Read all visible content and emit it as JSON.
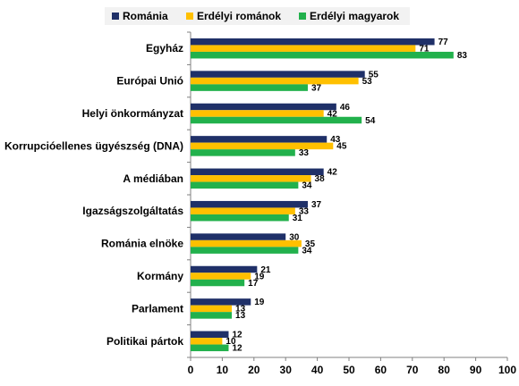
{
  "chart_data": {
    "type": "bar",
    "orientation": "horizontal",
    "categories": [
      "Egyház",
      "Európai Unió",
      "Helyi önkormányzat",
      "Korrupcióellenes ügyészség (DNA)",
      "A médiában",
      "Igazságszolgáltatás",
      "Románia elnöke",
      "Kormány",
      "Parlament",
      "Politikai pártok"
    ],
    "series": [
      {
        "name": "Románia",
        "color": "#1f3068",
        "values": [
          77,
          55,
          46,
          43,
          42,
          37,
          30,
          21,
          19,
          12
        ]
      },
      {
        "name": "Erdélyi románok",
        "color": "#ffc000",
        "values": [
          71,
          53,
          42,
          45,
          38,
          33,
          35,
          19,
          13,
          10
        ]
      },
      {
        "name": "Erdélyi magyarok",
        "color": "#22b14c",
        "values": [
          83,
          37,
          54,
          33,
          34,
          31,
          34,
          17,
          13,
          12
        ]
      }
    ],
    "xlim": [
      0,
      100
    ],
    "xticks": [
      "0",
      "10",
      "20",
      "30",
      "40",
      "50",
      "60",
      "70",
      "80",
      "90",
      "100"
    ],
    "legend_position": "top",
    "grid": false,
    "title": "",
    "xlabel": "",
    "ylabel": ""
  }
}
